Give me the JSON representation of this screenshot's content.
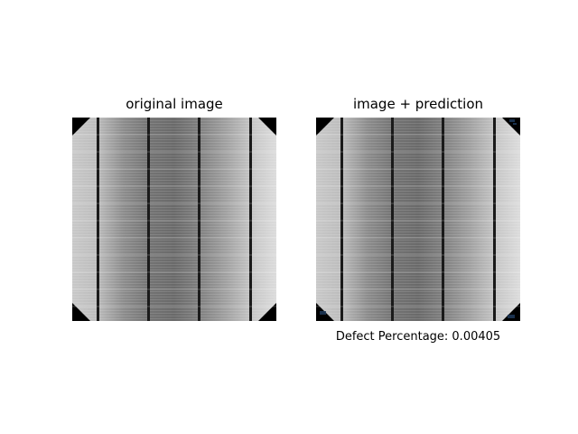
{
  "panels": {
    "left": {
      "title": "original image"
    },
    "right": {
      "title": "image + prediction",
      "caption": "Defect Percentage: 0.00405"
    }
  },
  "image_subject": "monocrystalline solar cell electroluminescence image with four vertical busbars and chamfered corners",
  "colors": {
    "background": "#ffffff",
    "corner_fill": "#000000",
    "busbar": "#1a1a1a",
    "defect_highlight": "#1e3a5a"
  }
}
